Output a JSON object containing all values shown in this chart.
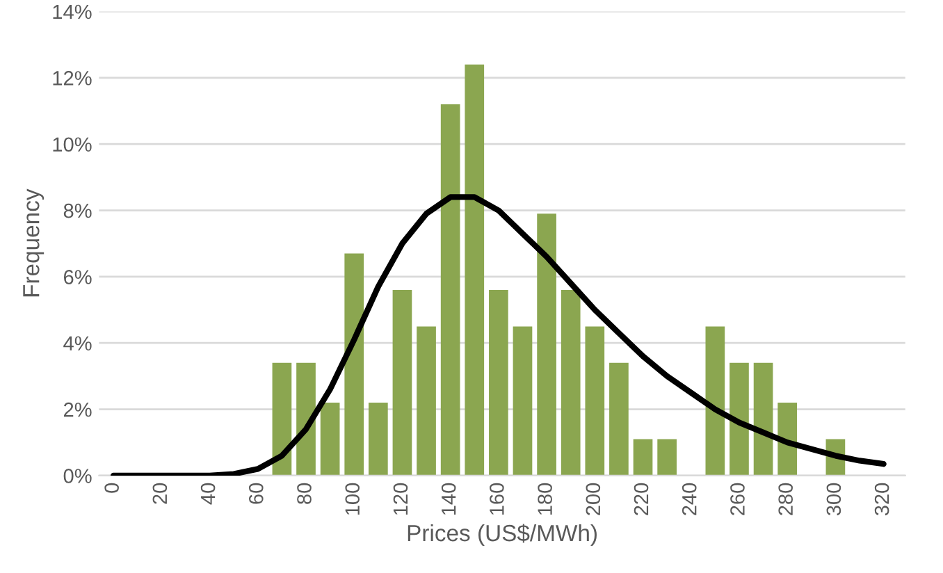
{
  "chart_data": {
    "type": "bar",
    "xlabel": "Prices (US$/MWh)",
    "ylabel": "Frequency",
    "categories": [
      "0",
      null,
      "20",
      null,
      "40",
      null,
      "60",
      null,
      "80",
      null,
      "100",
      null,
      "120",
      null,
      "140",
      null,
      "160",
      null,
      "180",
      null,
      "200",
      null,
      "220",
      null,
      "240",
      null,
      "260",
      null,
      "280",
      null,
      "300",
      null,
      "320"
    ],
    "series": [
      {
        "color": "#8ba650",
        "values": [
          0,
          0,
          0,
          0,
          0,
          0,
          0,
          3.4,
          3.4,
          2.2,
          6.7,
          2.2,
          5.6,
          4.5,
          11.2,
          12.4,
          5.6,
          4.5,
          7.9,
          5.6,
          4.5,
          3.4,
          1.1,
          1.1,
          0,
          4.5,
          3.4,
          3.4,
          2.2,
          0,
          1.1,
          0,
          0
        ]
      },
      {
        "type": "line",
        "color": "#000000",
        "marker": "none",
        "line_style": "solid",
        "values": [
          0,
          0,
          0,
          0,
          0,
          0.05,
          0.2,
          0.6,
          1.4,
          2.6,
          4.1,
          5.7,
          7.0,
          7.9,
          8.4,
          8.4,
          8.0,
          7.3,
          6.6,
          5.8,
          5.0,
          4.3,
          3.6,
          3.0,
          2.5,
          2.0,
          1.6,
          1.3,
          1.0,
          0.8,
          0.6,
          0.45,
          0.35
        ]
      }
    ],
    "ylim": [
      0,
      14
    ],
    "yticks": [
      {
        "value": 0,
        "label": "0%"
      },
      {
        "value": 2,
        "label": "2%"
      },
      {
        "value": 4,
        "label": "4%"
      },
      {
        "value": 6,
        "label": "6%"
      },
      {
        "value": 8,
        "label": "8%"
      },
      {
        "value": 10,
        "label": "10%"
      },
      {
        "value": 12,
        "label": "12%"
      },
      {
        "value": 14,
        "label": "14%"
      }
    ],
    "grid": "y",
    "legend": false
  }
}
